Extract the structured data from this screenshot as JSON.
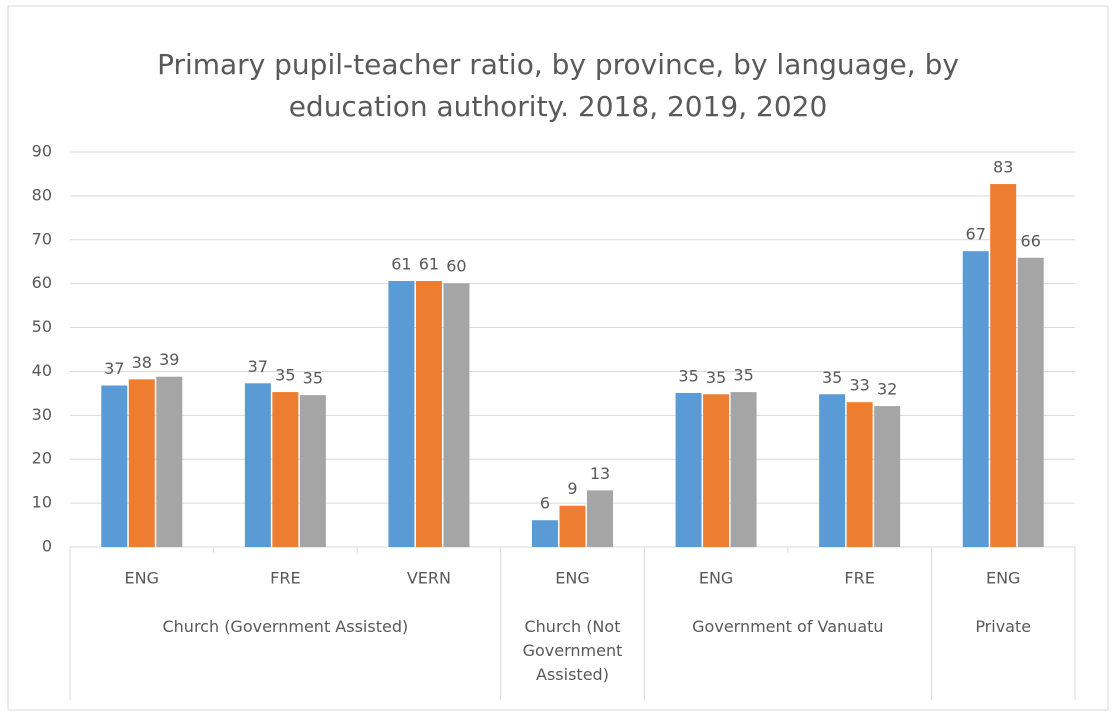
{
  "chart_data": {
    "type": "bar",
    "title": "Primary pupil-teacher ratio, by province, by language, by education authority. 2018, 2019, 2020",
    "categories": [
      "ENG",
      "FRE",
      "VERN",
      "ENG",
      "ENG",
      "FRE",
      "ENG"
    ],
    "groups": [
      {
        "name": "Church (Government Assisted)",
        "categories": [
          "ENG",
          "FRE",
          "VERN"
        ]
      },
      {
        "name": "Church (Not Government Assisted)",
        "categories": [
          "ENG"
        ]
      },
      {
        "name": "Government of Vanuatu",
        "categories": [
          "ENG",
          "FRE"
        ]
      },
      {
        "name": "Private",
        "categories": [
          "ENG"
        ]
      }
    ],
    "series": [
      {
        "color": "#5b9bd5",
        "values": [
          36.8,
          37.3,
          60.6,
          6.1,
          35.1,
          34.8,
          67.4
        ],
        "value_labels": [
          "37",
          "37",
          "61",
          "6",
          "35",
          "35",
          "67"
        ]
      },
      {
        "color": "#ed7d31",
        "values": [
          38.2,
          35.3,
          60.6,
          9.4,
          34.8,
          33.0,
          82.7
        ],
        "value_labels": [
          "38",
          "35",
          "61",
          "9",
          "35",
          "33",
          "83"
        ]
      },
      {
        "color": "#a5a5a5",
        "values": [
          38.8,
          34.6,
          60.1,
          12.9,
          35.3,
          32.1,
          65.9
        ],
        "value_labels": [
          "39",
          "35",
          "60",
          "13",
          "35",
          "32",
          "66"
        ]
      }
    ],
    "ylim": [
      0,
      90
    ],
    "yticks": [
      0,
      10,
      20,
      30,
      40,
      50,
      60,
      70,
      80,
      90
    ],
    "grid": true
  }
}
